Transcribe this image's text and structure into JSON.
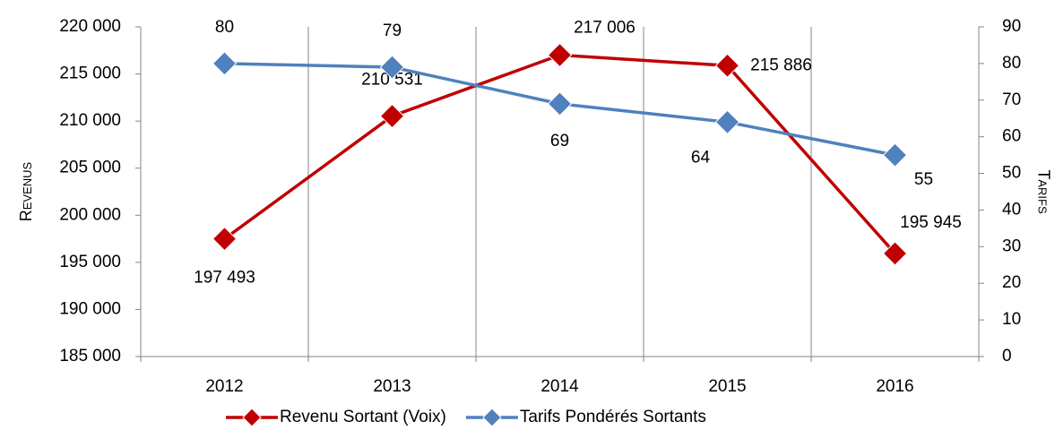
{
  "chart_data": {
    "type": "line",
    "categories": [
      "2012",
      "2013",
      "2014",
      "2015",
      "2016"
    ],
    "series": [
      {
        "name": "Revenu Sortant (Voix)",
        "color": "#c00000",
        "axis": "y",
        "values": [
          197493,
          210531,
          217006,
          215886,
          195945
        ],
        "value_labels": [
          "197 493",
          "210 531",
          "217 006",
          "215 886",
          "195 945"
        ]
      },
      {
        "name": "Tarifs Pondérés Sortants",
        "color": "#4f81bd",
        "axis": "y2",
        "values": [
          80,
          79,
          69,
          64,
          55
        ]
      }
    ],
    "ylabel": "Revenus",
    "y2label": "Tarifs",
    "ylim": [
      185000,
      220000
    ],
    "yticks": [
      {
        "value": 185000,
        "label": "185 000"
      },
      {
        "value": 190000,
        "label": "190 000"
      },
      {
        "value": 195000,
        "label": "195 000"
      },
      {
        "value": 200000,
        "label": "200 000"
      },
      {
        "value": 205000,
        "label": "205 000"
      },
      {
        "value": 210000,
        "label": "210 000"
      },
      {
        "value": 215000,
        "label": "215 000"
      },
      {
        "value": 220000,
        "label": "220 000"
      }
    ],
    "y2lim": [
      0,
      90
    ],
    "y2ticks": [
      0,
      10,
      20,
      30,
      40,
      50,
      60,
      70,
      80,
      90
    ],
    "legend": "bottom",
    "grid": "vertical"
  }
}
